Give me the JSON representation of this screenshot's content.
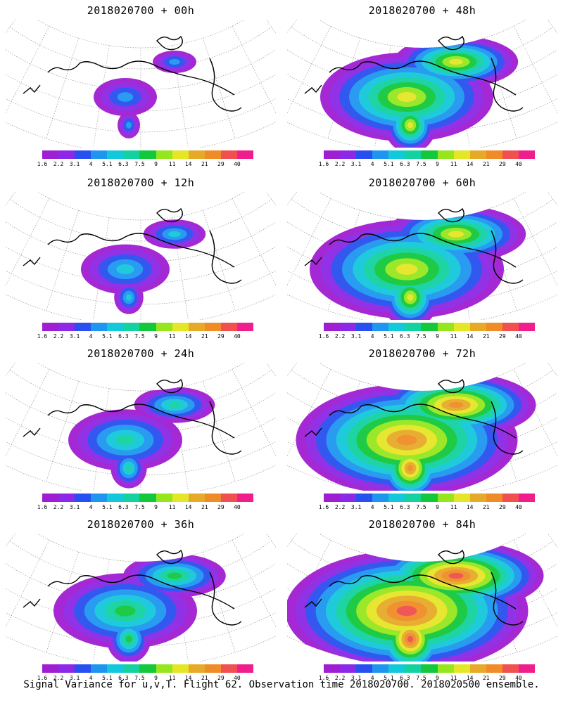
{
  "panels": [
    {
      "title": "2018020700 + 00h",
      "intensity": 0.1
    },
    {
      "title": "2018020700 + 48h",
      "intensity": 0.62
    },
    {
      "title": "2018020700 + 12h",
      "intensity": 0.22
    },
    {
      "title": "2018020700 + 60h",
      "intensity": 0.72
    },
    {
      "title": "2018020700 + 24h",
      "intensity": 0.34
    },
    {
      "title": "2018020700 + 72h",
      "intensity": 0.85
    },
    {
      "title": "2018020700 + 36h",
      "intensity": 0.48
    },
    {
      "title": "2018020700 + 84h",
      "intensity": 0.95
    }
  ],
  "colorbar": {
    "labels": [
      "1.6",
      "2.2",
      "3.1",
      "4",
      "5.1",
      "6.3",
      "7.5",
      "9",
      "11",
      "14",
      "21",
      "29",
      "40"
    ],
    "colors": [
      "#a01ed2",
      "#8c28e6",
      "#2850f0",
      "#1e96f0",
      "#14c8dc",
      "#14d2a0",
      "#14c83c",
      "#96e61e",
      "#e6e628",
      "#e6aa28",
      "#f08c28",
      "#f05050",
      "#f01e8c"
    ]
  },
  "footer": "Signal Variance for u,v,T. Flight 62. Observation time 2018020700. 2018020500 ensemble."
}
